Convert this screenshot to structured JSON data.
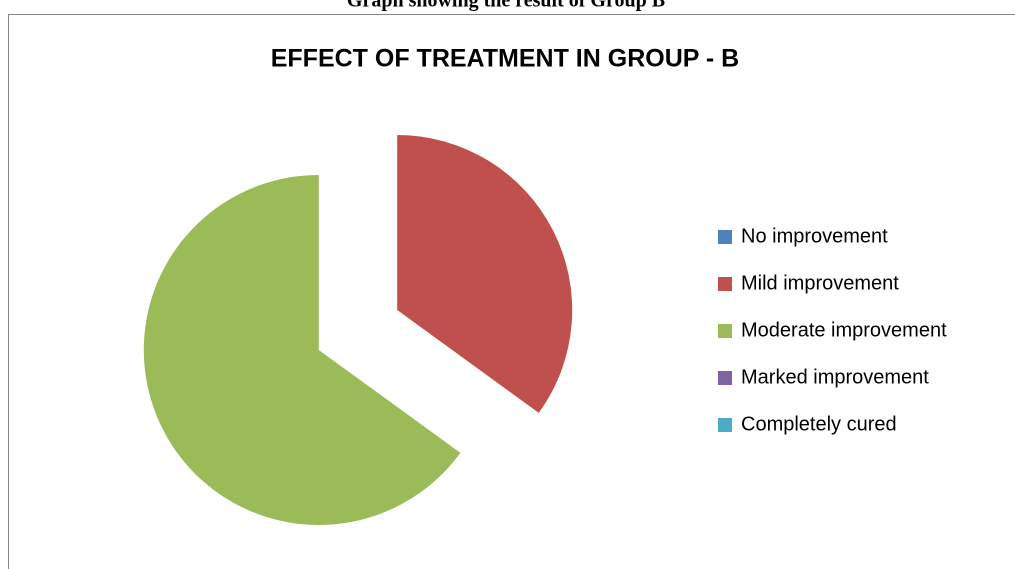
{
  "caption": "Graph showing the result of Group B",
  "chart_data": {
    "type": "pie",
    "title": "EFFECT OF TREATMENT IN GROUP - B",
    "categories": [
      "No improvement",
      "Mild improvement",
      "Moderate improvement",
      "Marked improvement",
      "Completely cured"
    ],
    "values": [
      0,
      35,
      65,
      0,
      0
    ],
    "colors": [
      "#4f81bd",
      "#c0504d",
      "#9bbb59",
      "#8064a2",
      "#4bacc6"
    ],
    "exploded": true,
    "legend": "right"
  }
}
